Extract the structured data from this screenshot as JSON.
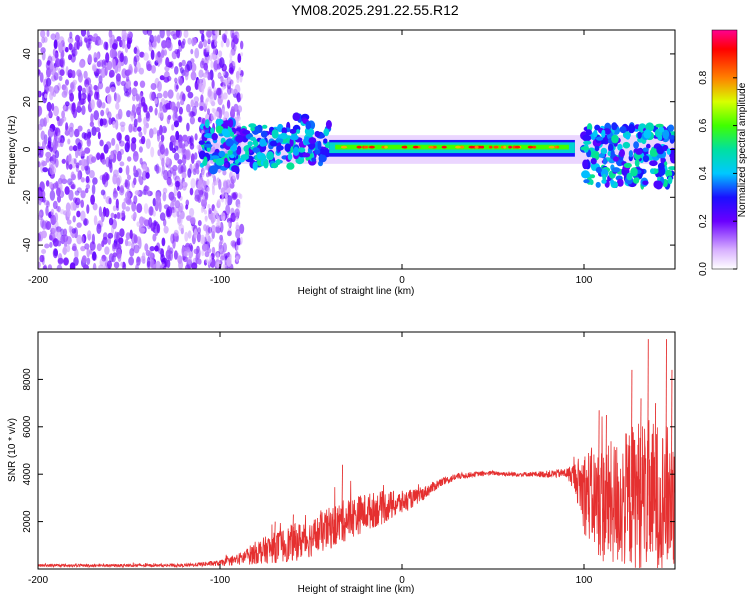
{
  "title": "YM08.2025.291.22.55.R12",
  "chart_data": [
    {
      "type": "heatmap",
      "name": "spectrogram",
      "xlabel": "Height of straight line (km)",
      "ylabel": "Frequency (Hz)",
      "xlim": [
        -200,
        150
      ],
      "ylim": [
        -50,
        50
      ],
      "x_ticks": [
        -200,
        -100,
        0,
        100
      ],
      "y_ticks": [
        -40,
        -20,
        0,
        20,
        40
      ],
      "colorbar": {
        "label": "Normalized spectral amplitude",
        "range": [
          0,
          1
        ],
        "ticks": [
          "0.0",
          "0.2",
          "0.4",
          "0.6",
          "0.8"
        ]
      },
      "regions": [
        {
          "x_range": [
            -200,
            -110
          ],
          "freq_range": [
            -50,
            50
          ],
          "amplitude": 0.05,
          "description": "noise"
        },
        {
          "x_range": [
            -110,
            -90
          ],
          "freq_range": [
            -10,
            10
          ],
          "amplitude": 0.3
        },
        {
          "x_range": [
            -90,
            -40
          ],
          "freq_range": [
            -8,
            12
          ],
          "amplitude": 0.3
        },
        {
          "x_range": [
            -40,
            95
          ],
          "freq_range": [
            -2,
            3
          ],
          "amplitude": 0.8,
          "center_hz": 1
        },
        {
          "x_range": [
            100,
            150
          ],
          "freq_range": [
            -15,
            10
          ],
          "amplitude": 0.3
        }
      ]
    },
    {
      "type": "line",
      "name": "snr",
      "xlabel": "Height of straight line (km)",
      "ylabel": "SNR (10 * v/v)",
      "xlim": [
        -200,
        150
      ],
      "ylim": [
        0,
        10000
      ],
      "x_ticks": [
        -200,
        -100,
        0,
        100
      ],
      "y_ticks": [
        2000,
        4000,
        6000,
        8000
      ],
      "color": "#e53030",
      "envelope": {
        "x": [
          -200,
          -120,
          -100,
          -90,
          -80,
          -70,
          -60,
          -50,
          -40,
          -30,
          -20,
          -10,
          0,
          10,
          20,
          30,
          40,
          50,
          60,
          70,
          80,
          90,
          95,
          100,
          110,
          120,
          130,
          140,
          150
        ],
        "center": [
          150,
          150,
          250,
          400,
          700,
          900,
          1100,
          1300,
          1700,
          2100,
          2400,
          2600,
          2800,
          3100,
          3600,
          3900,
          4000,
          4050,
          4000,
          4000,
          4000,
          4050,
          3900,
          3300,
          2700,
          2800,
          3200,
          3000,
          3000
        ],
        "spread": [
          60,
          60,
          120,
          250,
          500,
          650,
          800,
          800,
          900,
          900,
          800,
          700,
          500,
          300,
          200,
          150,
          100,
          100,
          100,
          100,
          150,
          200,
          600,
          1800,
          2500,
          2800,
          3200,
          3200,
          3000
        ]
      },
      "spikes": [
        {
          "x": -33,
          "y": 4400
        },
        {
          "x": -70,
          "y": 2000
        },
        {
          "x": -60,
          "y": 2300
        },
        {
          "x": 108,
          "y": 6700
        },
        {
          "x": 112,
          "y": 6500
        },
        {
          "x": 126,
          "y": 8400
        },
        {
          "x": 131,
          "y": 7200
        },
        {
          "x": 135,
          "y": 9700
        },
        {
          "x": 139,
          "y": 7000
        },
        {
          "x": 145,
          "y": 9700
        },
        {
          "x": 148,
          "y": 8400
        }
      ]
    }
  ]
}
